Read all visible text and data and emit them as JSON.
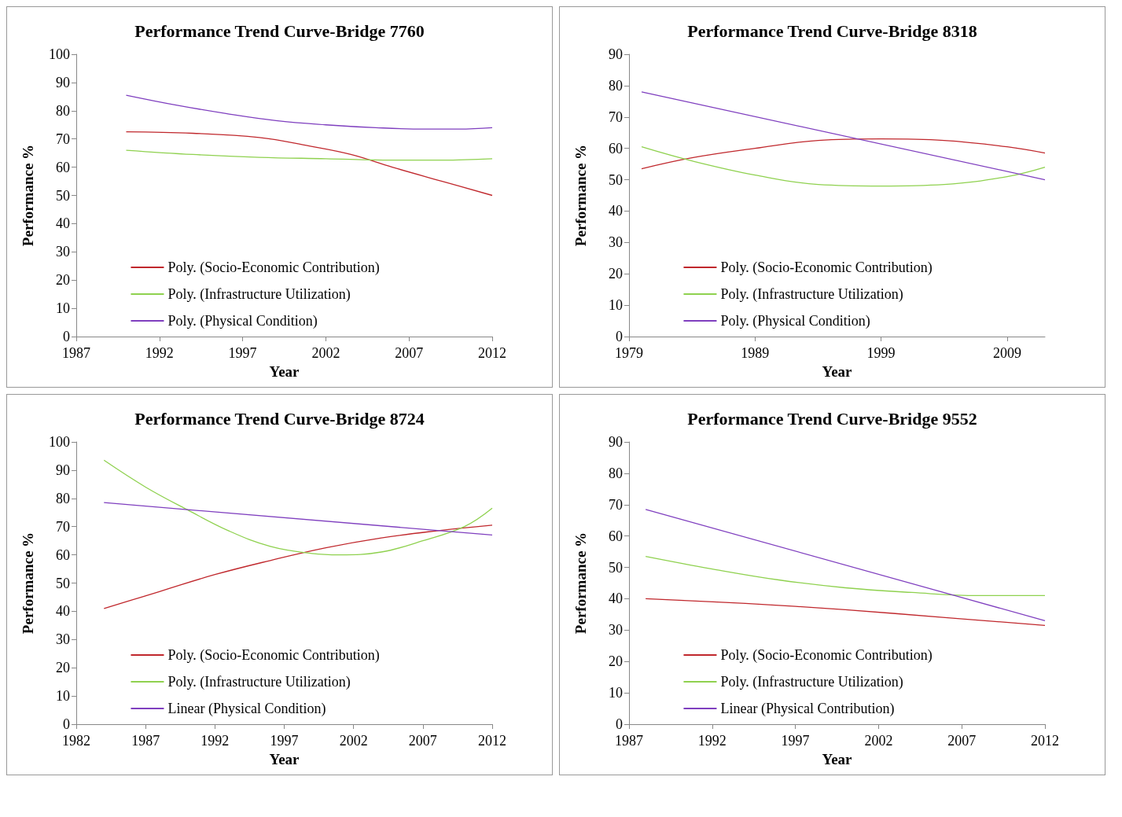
{
  "chart_data": [
    {
      "type": "line",
      "title": "Performance Trend Curve-Bridge 7760",
      "xlabel": "Year",
      "ylabel": "Performance %",
      "xlim": [
        1987,
        2012
      ],
      "xticks": [
        1987,
        1992,
        1997,
        2002,
        2007,
        2012
      ],
      "ylim": [
        0,
        100
      ],
      "yticks": [
        0,
        10,
        20,
        30,
        40,
        50,
        60,
        70,
        80,
        90,
        100
      ],
      "legend": "bottom",
      "grid": false,
      "marker": "none",
      "line_style": "solid",
      "series": [
        {
          "name": "Poly. (Socio-Economic Contribution)",
          "color": "#c0282d",
          "x": [
            1990,
            1994,
            1998,
            2001,
            2003.5,
            2006,
            2009,
            2012
          ],
          "values": [
            72.5,
            72,
            70.5,
            67.5,
            64.5,
            60,
            55,
            50
          ]
        },
        {
          "name": "Poly. (Infrastructure Utilization)",
          "color": "#8fd14f",
          "x": [
            1990,
            1994,
            1998,
            2002,
            2006,
            2009,
            2012
          ],
          "values": [
            66,
            64.5,
            63.5,
            63,
            62.5,
            62.5,
            63
          ]
        },
        {
          "name": "Poly. (Physical Condition)",
          "color": "#7f3fbf",
          "x": [
            1990,
            1993,
            1996,
            1999,
            2002,
            2005,
            2008,
            2010,
            2012
          ],
          "values": [
            85.5,
            82,
            79,
            76.5,
            75,
            74,
            73.5,
            73.5,
            74
          ]
        }
      ]
    },
    {
      "type": "line",
      "title": "Performance Trend Curve-Bridge 8318",
      "xlabel": "Year",
      "ylabel": "Performance %",
      "xlim": [
        1979,
        2012
      ],
      "xticks": [
        1979,
        1989,
        1999,
        2009
      ],
      "ylim": [
        0,
        90
      ],
      "yticks": [
        0,
        10,
        20,
        30,
        40,
        50,
        60,
        70,
        80,
        90
      ],
      "legend": "bottom",
      "grid": false,
      "marker": "none",
      "line_style": "solid",
      "series": [
        {
          "name": "Poly. (Socio-Economic Contribution)",
          "color": "#c0282d",
          "x": [
            1980,
            1984,
            1989,
            1994,
            1999,
            2004,
            2009,
            2012
          ],
          "values": [
            53.5,
            57,
            60,
            62.5,
            63,
            62.5,
            60.5,
            58.5
          ]
        },
        {
          "name": "Poly. (Infrastructure Utilization)",
          "color": "#8fd14f",
          "x": [
            1980,
            1984,
            1989,
            1994,
            1999,
            2004,
            2009,
            2012
          ],
          "values": [
            60.5,
            56,
            51.5,
            48.5,
            48,
            48.5,
            51,
            54
          ]
        },
        {
          "name": "Poly. (Physical Condition)",
          "color": "#7f3fbf",
          "x": [
            1980,
            2012
          ],
          "values": [
            78,
            50
          ]
        }
      ]
    },
    {
      "type": "line",
      "title": "Performance Trend Curve-Bridge 8724",
      "xlabel": "Year",
      "ylabel": "Performance %",
      "xlim": [
        1982,
        2012
      ],
      "xticks": [
        1982,
        1987,
        1992,
        1997,
        2002,
        2007,
        2012
      ],
      "ylim": [
        0,
        100
      ],
      "yticks": [
        0,
        10,
        20,
        30,
        40,
        50,
        60,
        70,
        80,
        90,
        100
      ],
      "legend": "bottom",
      "grid": false,
      "marker": "none",
      "line_style": "solid",
      "series": [
        {
          "name": "Poly. (Socio-Economic Contribution)",
          "color": "#c0282d",
          "x": [
            1984,
            1988,
            1992,
            1996,
            2000,
            2004,
            2008,
            2012
          ],
          "values": [
            41,
            47,
            53,
            58,
            62.5,
            66,
            68.5,
            70.5
          ]
        },
        {
          "name": "Poly. (Infrastructure Utilization)",
          "color": "#8fd14f",
          "x": [
            1984,
            1987,
            1990,
            1993,
            1996,
            1999,
            2001,
            2004,
            2007,
            2010,
            2012
          ],
          "values": [
            93.5,
            84,
            76,
            68.5,
            63,
            60.5,
            60,
            61,
            65,
            70,
            76.5
          ]
        },
        {
          "name": "Linear (Physical Condition)",
          "color": "#7f3fbf",
          "x": [
            1984,
            2012
          ],
          "values": [
            78.5,
            67
          ]
        }
      ]
    },
    {
      "type": "line",
      "title": "Performance Trend Curve-Bridge 9552",
      "xlabel": "Year",
      "ylabel": "Performance %",
      "xlim": [
        1987,
        2012
      ],
      "xticks": [
        1987,
        1992,
        1997,
        2002,
        2007,
        2012
      ],
      "ylim": [
        0,
        90
      ],
      "yticks": [
        0,
        10,
        20,
        30,
        40,
        50,
        60,
        70,
        80,
        90
      ],
      "legend": "bottom",
      "grid": false,
      "marker": "none",
      "line_style": "solid",
      "series": [
        {
          "name": "Poly. (Socio-Economic Contribution)",
          "color": "#c0282d",
          "x": [
            1988,
            1994,
            2000,
            2006,
            2012
          ],
          "values": [
            40,
            38.5,
            36.5,
            34,
            31.5
          ]
        },
        {
          "name": "Poly. (Infrastructure Utilization)",
          "color": "#8fd14f",
          "x": [
            1988,
            1992,
            1996,
            2000,
            2004,
            2008,
            2012
          ],
          "values": [
            53.5,
            49.5,
            46,
            43.5,
            42,
            41,
            41
          ]
        },
        {
          "name": "Linear (Physical Contribution)",
          "color": "#7f3fbf",
          "x": [
            1988,
            2012
          ],
          "values": [
            68.5,
            33
          ]
        }
      ]
    }
  ]
}
